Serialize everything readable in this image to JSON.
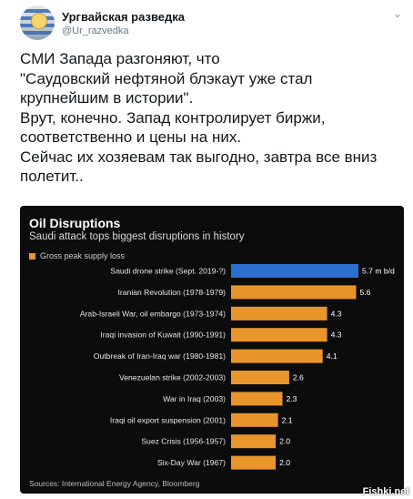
{
  "tweet": {
    "author_name": "Ургвайская разведка",
    "author_handle": "@Ur_razvedka",
    "text": "СМИ Запада разгоняют, что\n\"Саудовский нефтяной блэкаут уже стал крупнейшим в истории\".\nВрут, конечно. Запад контролирует биржи, соответственно и цены на них.\nСейчас их хозяевам так выгодно, завтра все вниз полетит.."
  },
  "chart_data": {
    "type": "bar",
    "title": "Oil Disruptions",
    "subtitle": "Saudi attack tops biggest disruptions in history",
    "legend": [
      "Gross peak supply loss"
    ],
    "categories": [
      "Saudi drone strike (Sept. 2019-?)",
      "Iranian Revolution (1978-1979)",
      "Arab-Israeli War, oil embargo (1973-1974)",
      "Iraqi invasion of Kuwait (1990-1991)",
      "Outbreak of Iran-Iraq war (1980-1981)",
      "Venezuelan strike (2002-2003)",
      "War in Iraq (2003)",
      "Iraqi oil export suspension (2001)",
      "Suez Crisis (1956-1957)",
      "Six-Day War (1967)"
    ],
    "values": [
      5.7,
      5.6,
      4.3,
      4.3,
      4.1,
      2.6,
      2.3,
      2.1,
      2.0,
      2.0
    ],
    "value_labels": [
      "5.7 m b/d",
      "5.6",
      "4.3",
      "4.3",
      "4.1",
      "2.6",
      "2.3",
      "2.1",
      "2.0",
      "2.0"
    ],
    "unit": "m b/d",
    "source": "Sources: International Energy Agency, Bloomberg",
    "colors": {
      "highlight": "#2b6fd1",
      "default": "#e8952b",
      "background": "#0c0c0c"
    },
    "xlim": [
      0,
      5.7
    ]
  },
  "watermark": "Fishki.net",
  "icons": {
    "menu": "chevron-down-icon"
  }
}
